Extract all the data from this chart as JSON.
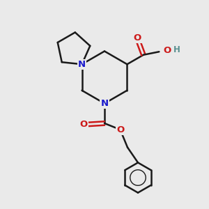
{
  "bg_color": "#eaeaea",
  "bond_color": "#1a1a1a",
  "N_color": "#1a1acc",
  "O_color": "#cc1a1a",
  "H_color": "#5a9090",
  "bond_width": 1.8,
  "font_size_atom": 9.5,
  "xlim": [
    0,
    10
  ],
  "ylim": [
    0,
    10
  ]
}
